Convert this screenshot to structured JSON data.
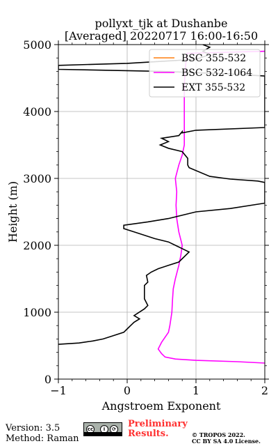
{
  "chart_data": {
    "type": "line",
    "title": "pollyxt_tjk at Dushanbe",
    "subtitle": "[Averaged] 20220717 16:00-16:50",
    "xlabel": "Angstroem Exponent",
    "ylabel": "Height (m)",
    "xlim": [
      -1,
      2
    ],
    "ylim": [
      0,
      5000
    ],
    "xticks": [
      -1,
      0,
      1,
      2
    ],
    "xtick_labels": [
      "−1",
      "0",
      "1",
      "2"
    ],
    "yticks": [
      0,
      1000,
      2000,
      3000,
      4000,
      5000
    ],
    "ytick_labels": [
      "0",
      "1000",
      "2000",
      "3000",
      "4000",
      "5000"
    ],
    "grid": true,
    "legend_position": "top-right",
    "series": [
      {
        "name": "BSC 355-532",
        "color": "#ff7f0e",
        "points": []
      },
      {
        "name": "BSC 532-1064",
        "color": "#ff00ff",
        "points": [
          [
            2.0,
            240
          ],
          [
            1.6,
            260
          ],
          [
            1.0,
            280
          ],
          [
            0.7,
            300
          ],
          [
            0.55,
            330
          ],
          [
            0.5,
            380
          ],
          [
            0.45,
            450
          ],
          [
            0.5,
            550
          ],
          [
            0.6,
            700
          ],
          [
            0.62,
            800
          ],
          [
            0.65,
            1000
          ],
          [
            0.66,
            1200
          ],
          [
            0.67,
            1350
          ],
          [
            0.7,
            1500
          ],
          [
            0.75,
            1700
          ],
          [
            0.78,
            1850
          ],
          [
            0.8,
            2000
          ],
          [
            0.75,
            2200
          ],
          [
            0.72,
            2400
          ],
          [
            0.71,
            2600
          ],
          [
            0.72,
            2800
          ],
          [
            0.7,
            3000
          ],
          [
            0.75,
            3200
          ],
          [
            0.8,
            3350
          ],
          [
            0.83,
            3500
          ],
          [
            0.83,
            3800
          ],
          [
            0.83,
            4100
          ],
          [
            0.83,
            4400
          ],
          [
            0.85,
            4700
          ],
          [
            0.87,
            4870
          ],
          [
            2.0,
            4900
          ]
        ]
      },
      {
        "name": "EXT 355-532",
        "color": "#000000",
        "points": [
          [
            -1.0,
            520
          ],
          [
            -0.7,
            540
          ],
          [
            -0.5,
            570
          ],
          [
            -0.35,
            600
          ],
          [
            -0.2,
            650
          ],
          [
            -0.05,
            700
          ],
          [
            0.0,
            750
          ],
          [
            0.05,
            800
          ],
          [
            0.1,
            850
          ],
          [
            0.18,
            900
          ],
          [
            0.1,
            950
          ],
          [
            0.25,
            1050
          ],
          [
            0.3,
            1100
          ],
          [
            0.25,
            1200
          ],
          [
            0.25,
            1300
          ],
          [
            0.25,
            1400
          ],
          [
            0.3,
            1450
          ],
          [
            0.28,
            1550
          ],
          [
            0.35,
            1600
          ],
          [
            0.45,
            1650
          ],
          [
            0.6,
            1700
          ],
          [
            0.75,
            1750
          ],
          [
            0.9,
            1900
          ],
          [
            0.8,
            1950
          ],
          [
            0.6,
            2050
          ],
          [
            0.4,
            2100
          ],
          [
            0.1,
            2200
          ],
          [
            -0.05,
            2250
          ],
          [
            -0.05,
            2300
          ],
          [
            0.3,
            2350
          ],
          [
            0.6,
            2400
          ],
          [
            1.0,
            2500
          ],
          [
            1.5,
            2550
          ],
          [
            2.0,
            2630
          ],
          [
            2.0,
            2940
          ],
          [
            1.9,
            2960
          ],
          [
            1.5,
            2990
          ],
          [
            1.2,
            3030
          ],
          [
            0.9,
            3160
          ],
          [
            0.88,
            3200
          ],
          [
            0.88,
            3300
          ],
          [
            0.8,
            3400
          ],
          [
            0.6,
            3450
          ],
          [
            0.48,
            3500
          ],
          [
            0.6,
            3550
          ],
          [
            0.5,
            3600
          ],
          [
            0.75,
            3640
          ],
          [
            0.8,
            3700
          ],
          [
            0.8,
            3680
          ],
          [
            1.0,
            3720
          ],
          [
            2.0,
            3760
          ],
          [
            2.0,
            4530
          ],
          [
            1.5,
            4560
          ],
          [
            0.5,
            4600
          ],
          [
            -1.0,
            4630
          ],
          [
            -1.0,
            4690
          ],
          [
            0.0,
            4720
          ],
          [
            1.0,
            4780
          ],
          [
            1.2,
            4850
          ],
          [
            1.1,
            4900
          ],
          [
            1.2,
            4960
          ],
          [
            1.1,
            5000
          ]
        ]
      }
    ]
  },
  "footer": {
    "version": "Version: 3.5",
    "method": "Method: Raman",
    "preliminary_line1": "Preliminary",
    "preliminary_line2": "Results.",
    "copyright_line1": "© TROPOS 2022.",
    "copyright_line2": "CC BY SA 4.0 License.",
    "license_badge": "cc-by-sa-icon",
    "license_badge_glyphs": [
      "cc",
      "i",
      "⟳"
    ]
  }
}
